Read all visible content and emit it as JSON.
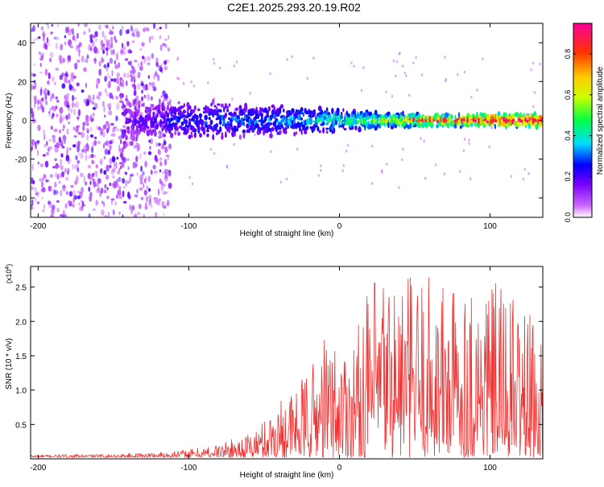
{
  "title": "C2E1.2025.293.20.19.R02",
  "chart_data": [
    {
      "type": "heatmap",
      "panel": "spectrogram",
      "xlabel": "Height of straight line (km)",
      "ylabel": "Frequency (Hz)",
      "xlim": [
        -205,
        135
      ],
      "ylim": [
        -50,
        50
      ],
      "x_ticks": [
        -200,
        -100,
        0,
        100
      ],
      "x_tick_labels": [
        "-200",
        "-100",
        "0",
        "100"
      ],
      "y_ticks": [
        40,
        20,
        0,
        -20,
        -40
      ],
      "y_tick_labels": [
        "40",
        "20",
        "0",
        "-20",
        "-40"
      ],
      "colorbar": {
        "label": "Normalized spectral amplitude",
        "range": [
          0,
          0.95
        ],
        "ticks": [
          0.0,
          0.2,
          0.4,
          0.6,
          0.8
        ],
        "tick_labels": [
          "0.0",
          "0.2",
          "0.4",
          "0.6",
          "0.8"
        ],
        "colors": [
          "#ffffff",
          "#8800ff",
          "#0000ff",
          "#00ffff",
          "#00ff00",
          "#ffff00",
          "#ff8800",
          "#ff0000",
          "#ff0099"
        ]
      },
      "band_profile": [
        {
          "x": -200,
          "half_width_hz": 50,
          "amplitude": 0.12
        },
        {
          "x": -150,
          "half_width_hz": 50,
          "amplitude": 0.13
        },
        {
          "x": -140,
          "half_width_hz": 8,
          "amplitude": 0.15
        },
        {
          "x": -100,
          "half_width_hz": 9,
          "amplitude": 0.25
        },
        {
          "x": -50,
          "half_width_hz": 7,
          "amplitude": 0.3
        },
        {
          "x": 0,
          "half_width_hz": 5,
          "amplitude": 0.4
        },
        {
          "x": 50,
          "half_width_hz": 3,
          "amplitude": 0.6
        },
        {
          "x": 100,
          "half_width_hz": 3,
          "amplitude": 0.8
        },
        {
          "x": 135,
          "half_width_hz": 3,
          "amplitude": 0.85
        }
      ]
    },
    {
      "type": "line",
      "panel": "snr",
      "xlabel": "Height of straight line (km)",
      "ylabel": "SNR (10 * v/v)",
      "scale_note": "(x10",
      "scale_exp": "4",
      "scale_close": ")",
      "xlim": [
        -205,
        135
      ],
      "ylim": [
        0,
        2.8
      ],
      "x_ticks": [
        -200,
        -100,
        0,
        100
      ],
      "x_tick_labels": [
        "-200",
        "-100",
        "0",
        "100"
      ],
      "y_ticks": [
        0.5,
        1.0,
        1.5,
        2.0,
        2.5
      ],
      "y_tick_labels": [
        "0.5",
        "1.0",
        "1.5",
        "2.0",
        "2.5"
      ],
      "color": "#ee3333",
      "envelope": {
        "x": [
          -205,
          -150,
          -120,
          -100,
          -80,
          -60,
          -50,
          -40,
          -30,
          -20,
          -10,
          0,
          10,
          20,
          30,
          40,
          60,
          80,
          100,
          120,
          135
        ],
        "upper": [
          0.04,
          0.05,
          0.08,
          0.12,
          0.2,
          0.35,
          0.55,
          0.9,
          1.0,
          1.3,
          1.8,
          1.7,
          1.8,
          2.5,
          2.8,
          2.7,
          2.7,
          2.6,
          2.6,
          2.3,
          1.8
        ]
      }
    }
  ]
}
